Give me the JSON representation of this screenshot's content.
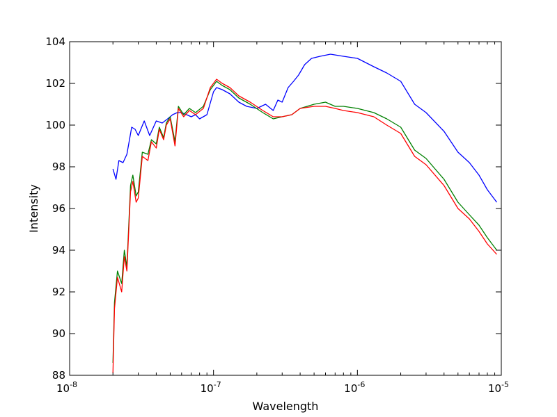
{
  "chart_data": {
    "type": "line",
    "title": "",
    "xlabel": "Wavelength",
    "ylabel": "Intensity",
    "xscale": "log",
    "xlim": [
      1e-08,
      1e-05
    ],
    "ylim": [
      88,
      104
    ],
    "grid": false,
    "x_ticks": [
      {
        "value": 1e-08,
        "base": "10",
        "exp": "-8"
      },
      {
        "value": 1e-07,
        "base": "10",
        "exp": "-7"
      },
      {
        "value": 1e-06,
        "base": "10",
        "exp": "-6"
      },
      {
        "value": 1e-05,
        "base": "10",
        "exp": "-5"
      }
    ],
    "y_ticks": [
      {
        "value": 88,
        "label": "88"
      },
      {
        "value": 90,
        "label": "90"
      },
      {
        "value": 92,
        "label": "92"
      },
      {
        "value": 94,
        "label": "94"
      },
      {
        "value": 96,
        "label": "96"
      },
      {
        "value": 98,
        "label": "98"
      },
      {
        "value": 100,
        "label": "100"
      },
      {
        "value": 102,
        "label": "102"
      },
      {
        "value": 104,
        "label": "104"
      }
    ],
    "series": [
      {
        "color": "#0000ff",
        "points": [
          [
            2e-08,
            97.9
          ],
          [
            2.1e-08,
            97.4
          ],
          [
            2.2e-08,
            98.3
          ],
          [
            2.35e-08,
            98.2
          ],
          [
            2.5e-08,
            98.6
          ],
          [
            2.7e-08,
            99.9
          ],
          [
            2.85e-08,
            99.8
          ],
          [
            3e-08,
            99.5
          ],
          [
            3.3e-08,
            100.2
          ],
          [
            3.6e-08,
            99.5
          ],
          [
            4e-08,
            100.2
          ],
          [
            4.4e-08,
            100.1
          ],
          [
            4.8e-08,
            100.3
          ],
          [
            5.2e-08,
            100.5
          ],
          [
            5.6e-08,
            100.6
          ],
          [
            6e-08,
            100.6
          ],
          [
            6.5e-08,
            100.5
          ],
          [
            7e-08,
            100.4
          ],
          [
            7.5e-08,
            100.5
          ],
          [
            8e-08,
            100.3
          ],
          [
            9e-08,
            100.5
          ],
          [
            1e-07,
            101.6
          ],
          [
            1.05e-07,
            101.8
          ],
          [
            1.15e-07,
            101.7
          ],
          [
            1.3e-07,
            101.5
          ],
          [
            1.5e-07,
            101.1
          ],
          [
            1.7e-07,
            100.9
          ],
          [
            2e-07,
            100.8
          ],
          [
            2.3e-07,
            101.0
          ],
          [
            2.6e-07,
            100.7
          ],
          [
            2.8e-07,
            101.2
          ],
          [
            3e-07,
            101.1
          ],
          [
            3.3e-07,
            101.8
          ],
          [
            3.6e-07,
            102.1
          ],
          [
            3.9e-07,
            102.4
          ],
          [
            4.3e-07,
            102.9
          ],
          [
            4.8e-07,
            103.2
          ],
          [
            5.5e-07,
            103.3
          ],
          [
            6.5e-07,
            103.4
          ],
          [
            8e-07,
            103.3
          ],
          [
            1e-06,
            103.2
          ],
          [
            1.3e-06,
            102.8
          ],
          [
            1.6e-06,
            102.5
          ],
          [
            2e-06,
            102.1
          ],
          [
            2.5e-06,
            101.0
          ],
          [
            3e-06,
            100.6
          ],
          [
            4e-06,
            99.7
          ],
          [
            5e-06,
            98.7
          ],
          [
            6e-06,
            98.2
          ],
          [
            7e-06,
            97.6
          ],
          [
            8e-06,
            96.9
          ],
          [
            9.3e-06,
            96.3
          ]
        ]
      },
      {
        "color": "#008000",
        "points": [
          [
            2e-08,
            88.6
          ],
          [
            2.05e-08,
            91.5
          ],
          [
            2.15e-08,
            93.0
          ],
          [
            2.3e-08,
            92.4
          ],
          [
            2.4e-08,
            94.0
          ],
          [
            2.5e-08,
            93.2
          ],
          [
            2.65e-08,
            97.1
          ],
          [
            2.75e-08,
            97.6
          ],
          [
            2.9e-08,
            96.6
          ],
          [
            3e-08,
            96.8
          ],
          [
            3.2e-08,
            98.7
          ],
          [
            3.5e-08,
            98.6
          ],
          [
            3.7e-08,
            99.3
          ],
          [
            4e-08,
            99.1
          ],
          [
            4.2e-08,
            99.9
          ],
          [
            4.5e-08,
            99.4
          ],
          [
            4.7e-08,
            100.1
          ],
          [
            5e-08,
            100.4
          ],
          [
            5.4e-08,
            99.2
          ],
          [
            5.7e-08,
            100.9
          ],
          [
            6.2e-08,
            100.5
          ],
          [
            6.8e-08,
            100.8
          ],
          [
            7.5e-08,
            100.6
          ],
          [
            8.5e-08,
            100.9
          ],
          [
            9.5e-08,
            101.7
          ],
          [
            1.05e-07,
            102.1
          ],
          [
            1.15e-07,
            101.9
          ],
          [
            1.3e-07,
            101.7
          ],
          [
            1.5e-07,
            101.3
          ],
          [
            1.8e-07,
            101.0
          ],
          [
            2.2e-07,
            100.6
          ],
          [
            2.6e-07,
            100.3
          ],
          [
            3e-07,
            100.4
          ],
          [
            3.5e-07,
            100.5
          ],
          [
            4e-07,
            100.8
          ],
          [
            5e-07,
            101.0
          ],
          [
            6e-07,
            101.1
          ],
          [
            7e-07,
            100.9
          ],
          [
            8e-07,
            100.9
          ],
          [
            1e-06,
            100.8
          ],
          [
            1.3e-06,
            100.6
          ],
          [
            1.6e-06,
            100.3
          ],
          [
            2e-06,
            99.9
          ],
          [
            2.5e-06,
            98.8
          ],
          [
            3e-06,
            98.4
          ],
          [
            4e-06,
            97.4
          ],
          [
            5e-06,
            96.3
          ],
          [
            6e-06,
            95.7
          ],
          [
            7e-06,
            95.2
          ],
          [
            8e-06,
            94.6
          ],
          [
            9.3e-06,
            94.0
          ]
        ]
      },
      {
        "color": "#ff0000",
        "points": [
          [
            2e-08,
            88.1
          ],
          [
            2.05e-08,
            91.2
          ],
          [
            2.15e-08,
            92.7
          ],
          [
            2.3e-08,
            92.0
          ],
          [
            2.4e-08,
            93.7
          ],
          [
            2.5e-08,
            93.0
          ],
          [
            2.65e-08,
            96.8
          ],
          [
            2.75e-08,
            97.3
          ],
          [
            2.9e-08,
            96.3
          ],
          [
            3e-08,
            96.5
          ],
          [
            3.2e-08,
            98.5
          ],
          [
            3.5e-08,
            98.3
          ],
          [
            3.7e-08,
            99.2
          ],
          [
            4e-08,
            98.9
          ],
          [
            4.2e-08,
            99.8
          ],
          [
            4.5e-08,
            99.3
          ],
          [
            4.7e-08,
            100.0
          ],
          [
            5e-08,
            100.3
          ],
          [
            5.4e-08,
            99.0
          ],
          [
            5.7e-08,
            100.8
          ],
          [
            6.2e-08,
            100.4
          ],
          [
            6.8e-08,
            100.7
          ],
          [
            7.5e-08,
            100.5
          ],
          [
            8.5e-08,
            100.8
          ],
          [
            9.5e-08,
            101.8
          ],
          [
            1.05e-07,
            102.2
          ],
          [
            1.15e-07,
            102.0
          ],
          [
            1.3e-07,
            101.8
          ],
          [
            1.5e-07,
            101.4
          ],
          [
            1.8e-07,
            101.1
          ],
          [
            2.2e-07,
            100.7
          ],
          [
            2.6e-07,
            100.4
          ],
          [
            3e-07,
            100.4
          ],
          [
            3.5e-07,
            100.5
          ],
          [
            4e-07,
            100.8
          ],
          [
            5e-07,
            100.9
          ],
          [
            6e-07,
            100.9
          ],
          [
            7e-07,
            100.8
          ],
          [
            8e-07,
            100.7
          ],
          [
            1e-06,
            100.6
          ],
          [
            1.3e-06,
            100.4
          ],
          [
            1.6e-06,
            100.0
          ],
          [
            2e-06,
            99.6
          ],
          [
            2.5e-06,
            98.5
          ],
          [
            3e-06,
            98.1
          ],
          [
            4e-06,
            97.1
          ],
          [
            5e-06,
            96.0
          ],
          [
            6e-06,
            95.5
          ],
          [
            7e-06,
            94.9
          ],
          [
            8e-06,
            94.3
          ],
          [
            9.3e-06,
            93.8
          ]
        ]
      }
    ]
  }
}
